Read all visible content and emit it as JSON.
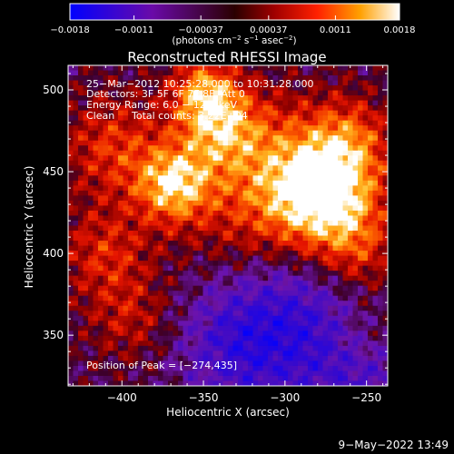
{
  "chart_data": {
    "type": "heatmap",
    "title": "Reconstructed RHESSI Image",
    "xlabel": "Heliocentric X (arcsec)",
    "ylabel": "Heliocentric Y (arcsec)",
    "xlim": [
      -433,
      -237
    ],
    "ylim": [
      319,
      515
    ],
    "x_ticks": [
      -400,
      -350,
      -300,
      -250
    ],
    "x_tick_labels": [
      "−400",
      "−350",
      "−300",
      "−250"
    ],
    "y_ticks": [
      350,
      400,
      450,
      500
    ],
    "y_tick_labels": [
      "350",
      "400",
      "450",
      "500"
    ],
    "colorbar": {
      "min": -0.0018,
      "max": 0.0018,
      "ticks": [
        -0.0018,
        -0.0011,
        -0.00037,
        0.00037,
        0.0011,
        0.0018
      ],
      "tick_labels": [
        "−0.0018",
        "−0.0011",
        "−0.00037",
        "0.00037",
        "0.0011",
        "0.0018"
      ],
      "units_text": "(photons cm",
      "units_exp1": "−2",
      "units_mid": " s",
      "units_exp2": "−1",
      "units_mid2": " asec",
      "units_exp3": "−2",
      "units_end": ")"
    },
    "annotations": {
      "line1": "25−Mar−2012 10:25:28.000 to 10:31:28.000",
      "line2": "Detectors: 3F 5F 6F 7F 8F, Att 0",
      "line3": "Energy Range: 6.0 − 12.0 keV",
      "line4_label": "Clean",
      "line4_counts": "Total counts: 3.22E+04",
      "peak": "Position of Peak = [−274,435]"
    },
    "peaks": [
      {
        "x": -274,
        "y": 435,
        "value": 0.0018
      },
      {
        "x": -368,
        "y": 442,
        "value": 0.0016
      },
      {
        "x": -340,
        "y": 478,
        "value": 0.0014
      },
      {
        "x": -350,
        "y": 498,
        "value": 0.0012
      }
    ],
    "grid": false,
    "legend": "none"
  },
  "footer_timestamp": "9−May−2022 13:49"
}
